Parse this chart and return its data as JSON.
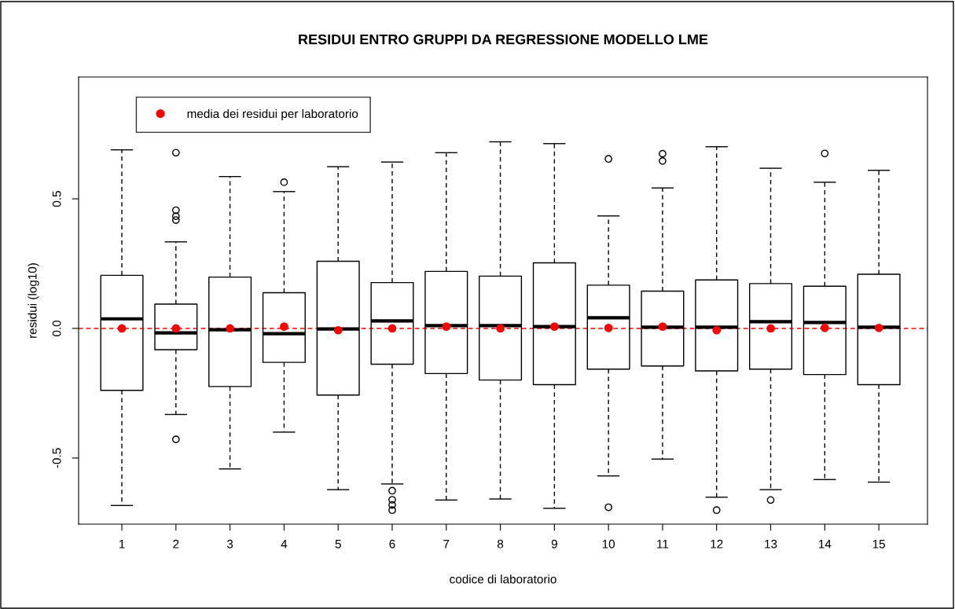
{
  "chart_data": {
    "type": "box",
    "title": "RESIDUI ENTRO GRUPPI DA REGRESSIONE MODELLO LME",
    "xlabel": "codice di laboratorio",
    "ylabel": "residui (log10)",
    "categories": [
      "1",
      "2",
      "3",
      "4",
      "5",
      "6",
      "7",
      "8",
      "9",
      "10",
      "11",
      "12",
      "13",
      "14",
      "15"
    ],
    "ylim": [
      -0.755,
      0.97
    ],
    "yticks": [
      {
        "value": -0.5,
        "label": "-0.5"
      },
      {
        "value": 0,
        "label": "0.0"
      },
      {
        "value": 0.5,
        "label": "0.5"
      }
    ],
    "boxes": [
      {
        "low": -0.683,
        "q1": -0.239,
        "median": 0.037,
        "q3": 0.205,
        "high": 0.689
      },
      {
        "low": -0.332,
        "q1": -0.082,
        "median": -0.017,
        "q3": 0.094,
        "high": 0.334,
        "outliers": [
          0.678,
          0.456,
          0.433,
          0.418,
          -0.428
        ]
      },
      {
        "low": -0.542,
        "q1": -0.224,
        "median": -0.005,
        "q3": 0.198,
        "high": 0.586
      },
      {
        "low": -0.4,
        "q1": -0.131,
        "median": -0.02,
        "q3": 0.138,
        "high": 0.528,
        "outliers": [
          0.564
        ]
      },
      {
        "low": -0.622,
        "q1": -0.257,
        "median": -0.002,
        "q3": 0.259,
        "high": 0.624
      },
      {
        "low": -0.6,
        "q1": -0.138,
        "median": 0.029,
        "q3": 0.177,
        "high": 0.642,
        "outliers": [
          -0.626,
          -0.661,
          -0.681,
          -0.701
        ]
      },
      {
        "low": -0.662,
        "q1": -0.174,
        "median": 0.011,
        "q3": 0.22,
        "high": 0.678
      },
      {
        "low": -0.658,
        "q1": -0.199,
        "median": 0.011,
        "q3": 0.202,
        "high": 0.72
      },
      {
        "low": -0.694,
        "q1": -0.217,
        "median": 0.007,
        "q3": 0.253,
        "high": 0.713
      },
      {
        "low": -0.569,
        "q1": -0.157,
        "median": 0.041,
        "q3": 0.167,
        "high": 0.434,
        "outliers": [
          0.654,
          -0.69
        ]
      },
      {
        "low": -0.504,
        "q1": -0.145,
        "median": 0.005,
        "q3": 0.144,
        "high": 0.542,
        "outliers": [
          0.674,
          0.646
        ]
      },
      {
        "low": -0.651,
        "q1": -0.164,
        "median": 0.005,
        "q3": 0.187,
        "high": 0.701,
        "outliers": [
          -0.701
        ]
      },
      {
        "low": -0.622,
        "q1": -0.157,
        "median": 0.026,
        "q3": 0.173,
        "high": 0.618,
        "outliers": [
          -0.662
        ]
      },
      {
        "low": -0.583,
        "q1": -0.178,
        "median": 0.023,
        "q3": 0.163,
        "high": 0.564,
        "outliers": [
          0.675
        ]
      },
      {
        "low": -0.593,
        "q1": -0.217,
        "median": 0.005,
        "q3": 0.209,
        "high": 0.61
      }
    ],
    "series": [
      {
        "type": "scatter",
        "name": "media dei residui per laboratorio",
        "color": "#ff0000",
        "marker": "circle",
        "x": [
          "1",
          "2",
          "3",
          "4",
          "5",
          "6",
          "7",
          "8",
          "9",
          "10",
          "11",
          "12",
          "13",
          "14",
          "15"
        ],
        "values": [
          0,
          0,
          0,
          0.007,
          -0.007,
          0,
          0.007,
          0,
          0.007,
          0.002,
          0.007,
          -0.007,
          0,
          0.002,
          0.002
        ]
      }
    ],
    "ref_lines": [
      {
        "axis": "y",
        "value": 0,
        "label": null,
        "color": "#ff0000",
        "line_style": "dashed"
      }
    ],
    "legend": "top left",
    "grid": false
  }
}
